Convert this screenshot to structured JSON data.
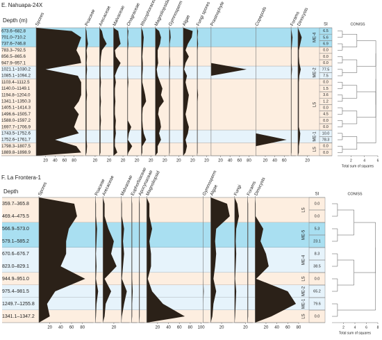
{
  "chart_data": [
    {
      "type": "stratigraphic",
      "title": "E. Nahuapa-24X",
      "ylabel": "Depth (m)",
      "categories": [
        "673.6–682.8",
        "701.0–710.2",
        "737.6–746.8",
        "783.3–792.5",
        "856.5–865.6",
        "947.9–957.1",
        "1021.1–1030.2",
        "1085.1–1094.2",
        "1103.4–1112.5",
        "1140.0–1149.1",
        "1194.8–1204.0",
        "1341.1–1350.3",
        "1405.1–1414.3",
        "1496.6–1505.7",
        "1588.0–1597.2",
        "1697.7–1706.9",
        "1743.5–1752.6",
        "1752.6–1761.7",
        "1798.3–1807.5",
        "1889.8–1898.9"
      ],
      "series": [
        {
          "name": "Spores",
          "color": "#2b2118",
          "xlim": [
            0,
            100
          ],
          "xticks": [
            20,
            40,
            60,
            80
          ],
          "values": [
            75,
            95,
            90,
            85,
            92,
            95,
            20,
            88,
            95,
            95,
            95,
            90,
            80,
            90,
            85,
            80,
            90,
            40,
            85,
            95
          ]
        },
        {
          "name": "Poaceae",
          "color": "#2b2118",
          "xlim": [
            0,
            25
          ],
          "xticks": [
            20
          ],
          "values": [
            2,
            3,
            5,
            2,
            3,
            2,
            3,
            2,
            2,
            2,
            3,
            2,
            2,
            2,
            2,
            2,
            2,
            2,
            3,
            2
          ]
        },
        {
          "name": "Arecaceae",
          "color": "#2b2118",
          "xlim": [
            0,
            25
          ],
          "xticks": [
            20
          ],
          "values": [
            5,
            8,
            15,
            5,
            3,
            2,
            2,
            2,
            3,
            2,
            2,
            3,
            2,
            2,
            3,
            2,
            2,
            2,
            2,
            2
          ]
        },
        {
          "name": "Malvaceae",
          "color": "#2b2118",
          "xlim": [
            0,
            25
          ],
          "xticks": [
            20
          ],
          "values": [
            10,
            12,
            15,
            3,
            5,
            15,
            8,
            3,
            5,
            3,
            3,
            4,
            3,
            3,
            5,
            4,
            5,
            3,
            3,
            8
          ]
        },
        {
          "name": "Onagraceae",
          "color": "#2b2118",
          "xlim": [
            0,
            25
          ],
          "xticks": [
            20
          ],
          "values": [
            2,
            1,
            2,
            1,
            1,
            1,
            1,
            1,
            2,
            1,
            1,
            1,
            1,
            1,
            1,
            8,
            3,
            1,
            10,
            2
          ]
        },
        {
          "name": "Rhizophoraceae",
          "color": "#2b2118",
          "xlim": [
            0,
            25
          ],
          "xticks": [
            20
          ],
          "values": [
            3,
            5,
            4,
            3,
            2,
            3,
            3,
            2,
            2,
            5,
            8,
            10,
            3,
            2,
            2,
            3,
            5,
            10,
            2,
            2
          ]
        },
        {
          "name": "Magnoliopsida",
          "color": "#2b2118",
          "xlim": [
            0,
            25
          ],
          "xticks": [
            20
          ],
          "values": [
            8,
            12,
            10,
            5,
            5,
            6,
            3,
            5,
            10,
            15,
            12,
            18,
            8,
            6,
            10,
            12,
            8,
            12,
            5,
            5
          ]
        },
        {
          "name": "Gymnosperm",
          "color": "#2b2118",
          "xlim": [
            0,
            25
          ],
          "xticks": [
            20
          ],
          "values": [
            2,
            3,
            1,
            1,
            1,
            2,
            1,
            1,
            1,
            1,
            1,
            1,
            1,
            1,
            1,
            1,
            1,
            1,
            1,
            1
          ]
        },
        {
          "name": "Algae",
          "color": "#2b2118",
          "xlim": [
            0,
            25
          ],
          "xticks": [
            20
          ],
          "values": [
            20,
            18,
            10,
            5,
            12,
            5,
            2,
            8,
            5,
            8,
            12,
            10,
            8,
            5,
            8,
            12,
            10,
            5,
            8,
            5
          ]
        },
        {
          "name": "Fungi spores",
          "color": "#2b2118",
          "xlim": [
            0,
            25
          ],
          "xticks": [
            20
          ],
          "values": [
            2,
            1,
            2,
            1,
            1,
            1,
            1,
            1,
            1,
            1,
            2,
            1,
            1,
            1,
            1,
            1,
            1,
            1,
            1,
            1
          ]
        },
        {
          "name": "Prasinophyte",
          "color": "#2b2118",
          "xlim": [
            0,
            90
          ],
          "xticks": [
            20,
            40,
            60,
            80
          ],
          "values": [
            0,
            0,
            0,
            0,
            0,
            0,
            75,
            0,
            0,
            0,
            0,
            0,
            0,
            0,
            0,
            0,
            0,
            0,
            0,
            0
          ]
        },
        {
          "name": "Copepods",
          "color": "#2b2118",
          "xlim": [
            0,
            70
          ],
          "xticks": [
            20,
            40,
            60
          ],
          "values": [
            0,
            0,
            0,
            0,
            0,
            0,
            0,
            0,
            0,
            0,
            0,
            0,
            0,
            0,
            0,
            0,
            0,
            65,
            0,
            0
          ]
        },
        {
          "name": "Forams",
          "color": "#2b2118",
          "xlim": [
            0,
            10
          ],
          "xticks": [],
          "values": [
            1,
            3,
            2,
            1,
            1,
            1,
            2,
            1,
            1,
            1,
            1,
            1,
            1,
            1,
            1,
            1,
            1,
            1,
            1,
            1
          ]
        },
        {
          "name": "Dinocysts",
          "color": "#2b2118",
          "xlim": [
            0,
            25
          ],
          "xticks": [
            20
          ],
          "values": [
            3,
            8,
            5,
            2,
            2,
            3,
            6,
            3,
            2,
            2,
            2,
            2,
            2,
            2,
            2,
            2,
            5,
            4,
            2,
            2
          ]
        }
      ],
      "si": {
        "label": "SI",
        "values": [
          6.5,
          5.6,
          6.9,
          0,
          0,
          0,
          77.5,
          7.5,
          0,
          1.5,
          3.6,
          1.2,
          0,
          4.5,
          0,
          0,
          10,
          78.3,
          0,
          0
        ],
        "value_labels": [
          "6.5",
          "5.6",
          "6.9",
          "0.0",
          "0.0",
          "0.0",
          "77.5",
          "7.5",
          "0.0",
          "1.5",
          "3.6",
          "1.2",
          "0.0",
          "4.5",
          "0.0",
          "0.0",
          "10.0",
          "78.3",
          "0.0",
          "0.0"
        ]
      },
      "zones": [
        {
          "label": "ME-4",
          "rows": [
            0,
            2
          ],
          "color": "#a9dff1"
        },
        {
          "label": null,
          "rows": [
            3,
            5
          ],
          "color": "#fdeee0"
        },
        {
          "label": "ME-2",
          "rows": [
            6,
            7
          ],
          "color": "#e6f3fb"
        },
        {
          "label": "LS",
          "rows": [
            8,
            15
          ],
          "color": "#fdeee0"
        },
        {
          "label": "ME-1",
          "rows": [
            16,
            17
          ],
          "color": "#e6f3fb"
        },
        {
          "label": "LS",
          "rows": [
            18,
            19
          ],
          "color": "#fdeee0"
        }
      ],
      "coniss": {
        "title": "CONISS",
        "xlabel": "Total sum of squares",
        "xlim": [
          0,
          6
        ],
        "xticks": [
          2,
          4,
          6
        ]
      }
    },
    {
      "type": "stratigraphic",
      "title": "F. La Frontera-1",
      "ylabel": "Depth",
      "categories": [
        "359.7–365.8",
        "469.4–475.5",
        "566.9–573.0",
        "579.1–585.2",
        "670.6–676.7",
        "823.0–829.1",
        "944.9–951.0",
        "975.4–981.5",
        "1249.7–1255.8",
        "1341.1–1347.2"
      ],
      "series": [
        {
          "name": "Spores",
          "color": "#2b2118",
          "xlim": [
            0,
            100
          ],
          "xticks": [
            20,
            40,
            60,
            80
          ],
          "values": [
            65,
            70,
            55,
            50,
            50,
            40,
            85,
            30,
            15,
            20
          ]
        },
        {
          "name": "Poaceae",
          "color": "#2b2118",
          "xlim": [
            0,
            10
          ],
          "xticks": [],
          "values": [
            1,
            1,
            3,
            2,
            1,
            2,
            1,
            5,
            2,
            1
          ]
        },
        {
          "name": "Arecaceae",
          "color": "#2b2118",
          "xlim": [
            0,
            30
          ],
          "xticks": [
            20
          ],
          "values": [
            3,
            3,
            10,
            20,
            15,
            25,
            3,
            15,
            5,
            3
          ]
        },
        {
          "name": "Malvaceae",
          "color": "#2b2118",
          "xlim": [
            0,
            15
          ],
          "xticks": [],
          "values": [
            1,
            1,
            5,
            3,
            5,
            3,
            1,
            10,
            5,
            1
          ]
        },
        {
          "name": "Euphorbiaceae",
          "color": "#2b2118",
          "xlim": [
            0,
            10
          ],
          "xticks": [],
          "values": [
            1,
            1,
            1,
            1,
            1,
            1,
            1,
            2,
            1,
            1
          ]
        },
        {
          "name": "Apocynaceae",
          "color": "#2b2118",
          "xlim": [
            0,
            10
          ],
          "xticks": [],
          "values": [
            1,
            1,
            1,
            1,
            1,
            1,
            1,
            1,
            1,
            1
          ]
        },
        {
          "name": "Magnoliopsid",
          "color": "#2b2118",
          "xlim": [
            0,
            100
          ],
          "xticks": [
            20,
            40,
            60,
            80,
            100
          ],
          "values": [
            5,
            5,
            10,
            5,
            8,
            8,
            2,
            10,
            30,
            70
          ]
        },
        {
          "name": "Gymnosperm",
          "color": "#2b2118",
          "xlim": [
            0,
            10
          ],
          "xticks": [],
          "values": [
            0,
            0,
            0,
            0,
            0,
            0,
            0,
            1,
            0,
            0
          ]
        },
        {
          "name": "Algae",
          "color": "#2b2118",
          "xlim": [
            0,
            40
          ],
          "xticks": [
            20
          ],
          "values": [
            30,
            35,
            10,
            8,
            10,
            8,
            5,
            10,
            5,
            3
          ]
        },
        {
          "name": "Fungi",
          "color": "#2b2118",
          "xlim": [
            0,
            20
          ],
          "xticks": [
            20
          ],
          "values": [
            5,
            8,
            3,
            2,
            3,
            2,
            1,
            3,
            2,
            1
          ]
        },
        {
          "name": "Forams",
          "color": "#2b2118",
          "xlim": [
            0,
            10
          ],
          "xticks": [],
          "values": [
            1,
            1,
            1,
            1,
            1,
            1,
            1,
            1,
            1,
            1
          ]
        },
        {
          "name": "Dinocysts",
          "color": "#2b2118",
          "xlim": [
            0,
            80
          ],
          "xticks": [
            20,
            40,
            60,
            80
          ],
          "values": [
            1,
            1,
            15,
            10,
            20,
            25,
            2,
            60,
            75,
            30
          ]
        }
      ],
      "si": {
        "label": "SI",
        "values": [
          0,
          0,
          5.3,
          23.1,
          8.3,
          38.5,
          0,
          65.2,
          79.6,
          0
        ],
        "value_labels": [
          "0.0",
          "0.0",
          "5.3",
          "23.1",
          "8.3",
          "38.5",
          "0.0",
          "65.2",
          "79.6",
          "0.0"
        ]
      },
      "zones": [
        {
          "label": "LS",
          "rows": [
            0,
            1
          ],
          "color": "#fdeee0"
        },
        {
          "label": "ME-5",
          "rows": [
            2,
            3
          ],
          "color": "#a9dff1"
        },
        {
          "label": "ME-4",
          "rows": [
            4,
            5
          ],
          "color": "#e6f3fb"
        },
        {
          "label": "LS",
          "rows": [
            6,
            6
          ],
          "color": "#fdeee0"
        },
        {
          "label": "ME-2",
          "rows": [
            7,
            7
          ],
          "color": "#e6f3fb"
        },
        {
          "label": "ME-1",
          "rows": [
            8,
            8
          ],
          "color": "#e6f3fb"
        },
        {
          "label": "LS",
          "rows": [
            9,
            9
          ],
          "color": "#fdeee0"
        }
      ],
      "coniss": {
        "title": "CONISS",
        "xlabel": "Total sum of squares",
        "xlim": [
          0,
          8
        ],
        "xticks": [
          2,
          4,
          6,
          8
        ]
      }
    }
  ]
}
